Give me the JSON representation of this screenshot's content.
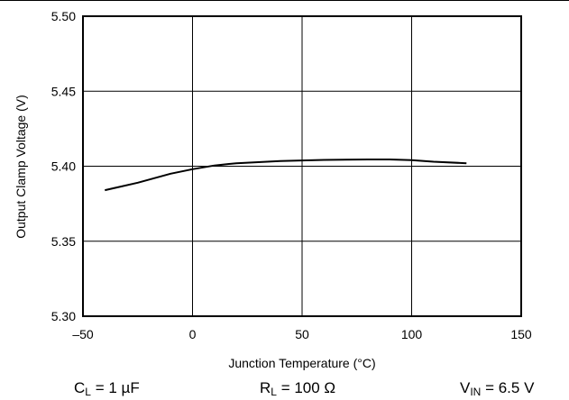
{
  "chart_data": {
    "type": "line",
    "title": "",
    "xlabel": "Junction Temperature (°C)",
    "ylabel": "Output Clamp Voltage (V)",
    "xlim": [
      -50,
      150
    ],
    "ylim": [
      5.3,
      5.5
    ],
    "x_ticks": [
      -50,
      0,
      50,
      100,
      150
    ],
    "x_tick_labels": [
      "–50",
      "0",
      "50",
      "100",
      "150"
    ],
    "y_ticks": [
      5.3,
      5.35,
      5.4,
      5.45,
      5.5
    ],
    "y_tick_labels": [
      "5.30",
      "5.35",
      "5.40",
      "5.45",
      "5.50"
    ],
    "grid": true,
    "series": [
      {
        "x": [
          -40,
          -25,
          -10,
          0,
          10,
          20,
          40,
          60,
          80,
          90,
          100,
          110,
          125
        ],
        "y": [
          5.384,
          5.389,
          5.395,
          5.398,
          5.4005,
          5.402,
          5.4035,
          5.4042,
          5.4045,
          5.4045,
          5.404,
          5.403,
          5.402
        ]
      }
    ]
  },
  "conditions": {
    "cl": {
      "symbol": "C",
      "sub": "L",
      "value": " = 1 µF"
    },
    "rl": {
      "symbol": "R",
      "sub": "L",
      "value": " = 100 Ω"
    },
    "vin": {
      "symbol": "V",
      "sub": "IN",
      "value": " = 6.5 V"
    }
  },
  "colors": {
    "line": "#000000",
    "grid": "#000000",
    "background": "#ffffff"
  }
}
